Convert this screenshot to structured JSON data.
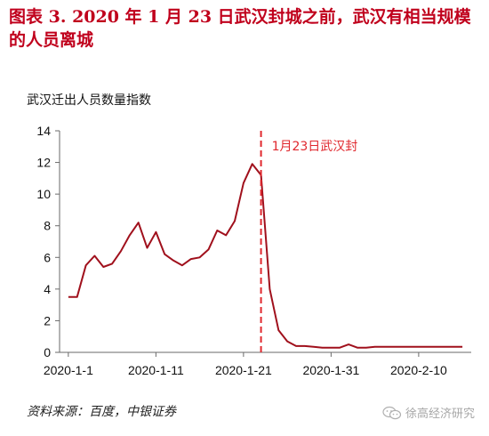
{
  "figure": {
    "title": "图表 3. 2020 年 1 月 23 日武汉封城之前，武汉有相当规模的人员离城",
    "source": "资料来源：百度，中银证券",
    "watermark": "徐高经济研究",
    "watermark_icon": "wechat-icon"
  },
  "chart_data": {
    "type": "line",
    "title": "武汉迁出人员数量指数",
    "xlabel": "",
    "ylabel": "",
    "ylim": [
      0,
      14
    ],
    "yticks": [
      "0",
      "2",
      "4",
      "6",
      "8",
      "10",
      "12",
      "14"
    ],
    "xlim": [
      "2019-12-31",
      "2020-02-16"
    ],
    "xticks": [
      {
        "label": "2020-1-1",
        "date": "2020-01-01"
      },
      {
        "label": "2020-1-11",
        "date": "2020-01-11"
      },
      {
        "label": "2020-1-21",
        "date": "2020-01-21"
      },
      {
        "label": "2020-1-31",
        "date": "2020-01-31"
      },
      {
        "label": "2020-2-10",
        "date": "2020-02-10"
      }
    ],
    "grid": false,
    "line_color": "#a0101c",
    "annotation": {
      "text": "1月23日武汉封",
      "date": "2020-01-23",
      "color": "#e0282e"
    },
    "series": [
      {
        "x": [
          "2020-01-01",
          "2020-01-02",
          "2020-01-03",
          "2020-01-04",
          "2020-01-05",
          "2020-01-06",
          "2020-01-07",
          "2020-01-08",
          "2020-01-09",
          "2020-01-10",
          "2020-01-11",
          "2020-01-12",
          "2020-01-13",
          "2020-01-14",
          "2020-01-15",
          "2020-01-16",
          "2020-01-17",
          "2020-01-18",
          "2020-01-19",
          "2020-01-20",
          "2020-01-21",
          "2020-01-22",
          "2020-01-23",
          "2020-01-24",
          "2020-01-25",
          "2020-01-26",
          "2020-01-27",
          "2020-01-28",
          "2020-01-29",
          "2020-01-30",
          "2020-01-31",
          "2020-02-01",
          "2020-02-02",
          "2020-02-03",
          "2020-02-04",
          "2020-02-05",
          "2020-02-06",
          "2020-02-07",
          "2020-02-08",
          "2020-02-09",
          "2020-02-10",
          "2020-02-11",
          "2020-02-12",
          "2020-02-13",
          "2020-02-14",
          "2020-02-15"
        ],
        "values": [
          3.5,
          3.5,
          5.5,
          6.1,
          5.4,
          5.6,
          6.4,
          7.4,
          8.2,
          6.6,
          7.6,
          6.2,
          5.8,
          5.5,
          5.9,
          6.0,
          6.5,
          7.7,
          7.4,
          8.3,
          10.7,
          11.9,
          11.2,
          4.0,
          1.4,
          0.7,
          0.4,
          0.4,
          0.35,
          0.3,
          0.3,
          0.3,
          0.5,
          0.3,
          0.3,
          0.35,
          0.35,
          0.35,
          0.35,
          0.35,
          0.35,
          0.35,
          0.35,
          0.35,
          0.35,
          0.35
        ]
      }
    ]
  }
}
